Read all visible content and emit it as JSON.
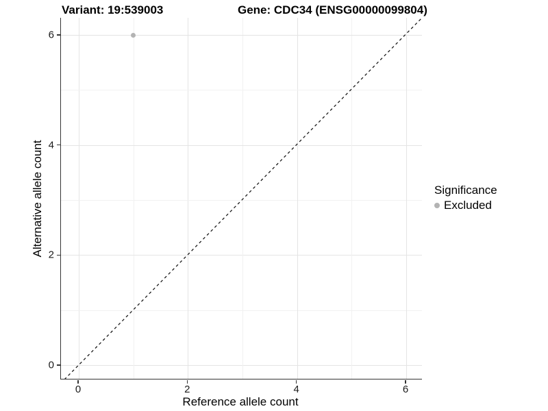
{
  "chart_data": {
    "type": "scatter",
    "title_left": "Variant: 19:539003",
    "title_right": "Gene: CDC34 (ENSG00000099804)",
    "xlabel": "Reference allele count",
    "ylabel": "Alternative allele count",
    "x_ticks": [
      0,
      2,
      4,
      6
    ],
    "y_ticks": [
      0,
      2,
      4,
      6
    ],
    "xlim": [
      -0.33,
      6.3
    ],
    "ylim": [
      -0.27,
      6.32
    ],
    "grid": {
      "integer_lines_from": 0,
      "integer_lines_to": 6,
      "major_every": 2,
      "major_color": "#e4e4e4",
      "minor_color": "#f1f1f1"
    },
    "points": [
      {
        "x": 1,
        "y": 6,
        "significance": "Excluded",
        "color": "#b3b3b3"
      }
    ],
    "reference_line": {
      "style": "dashed",
      "slope": 1,
      "intercept": 0,
      "color": "#1a1a1a"
    },
    "legend": {
      "title": "Significance",
      "position": "right",
      "items": [
        {
          "label": "Excluded",
          "color": "#b3b3b3"
        }
      ]
    }
  },
  "colors": {
    "background": "#ffffff",
    "axis_line": "#333333",
    "tick_text": "#1a1a1a"
  }
}
